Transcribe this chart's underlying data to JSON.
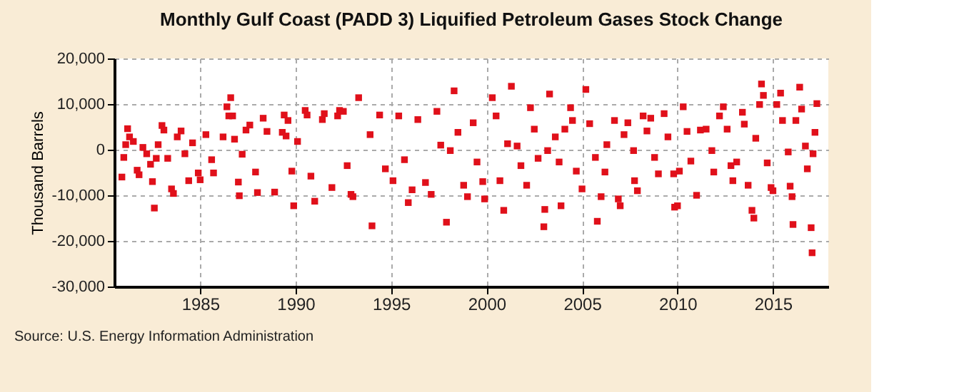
{
  "chart_data": {
    "type": "scatter",
    "title": "Monthly Gulf Coast (PADD 3) Liquified Petroleum Gases Stock Change",
    "ylabel": "Thousand Barrels",
    "annotations": [
      "Source: U.S. Energy Information Administration"
    ],
    "xlim": [
      1980.5,
      2017.9
    ],
    "xticks": [
      1985,
      1990,
      1995,
      2000,
      2005,
      2010,
      2015
    ],
    "ylim": [
      -30000,
      20000
    ],
    "yticks": [
      {
        "value": -30000,
        "label": "-30,000"
      },
      {
        "value": -20000,
        "label": "-20,000"
      },
      {
        "value": -10000,
        "label": "-10,000"
      },
      {
        "value": 0,
        "label": "0"
      },
      {
        "value": 10000,
        "label": "10,000"
      },
      {
        "value": 20000,
        "label": "20,000"
      }
    ],
    "grid": true,
    "marker": "square",
    "series": [
      {
        "color": "#e0101a",
        "x": [
          1980.9,
          1981.0,
          1981.1,
          1981.2,
          1981.3,
          1981.5,
          1981.7,
          1981.8,
          1982.0,
          1982.2,
          1982.4,
          1982.5,
          1982.6,
          1982.7,
          1982.8,
          1983.0,
          1983.1,
          1983.3,
          1983.5,
          1983.6,
          1983.8,
          1984.0,
          1984.2,
          1984.4,
          1984.6,
          1984.9,
          1985.0,
          1985.3,
          1985.6,
          1985.7,
          1986.2,
          1986.4,
          1986.5,
          1986.6,
          1986.7,
          1986.8,
          1987.0,
          1987.05,
          1987.2,
          1987.4,
          1987.6,
          1987.9,
          1988.0,
          1988.3,
          1988.5,
          1988.9,
          1989.3,
          1989.4,
          1989.5,
          1989.6,
          1989.8,
          1989.9,
          1990.1,
          1990.5,
          1990.6,
          1990.8,
          1991.0,
          1991.4,
          1991.5,
          1991.9,
          1992.2,
          1992.3,
          1992.5,
          1992.7,
          1992.9,
          1993.0,
          1993.3,
          1993.9,
          1994.0,
          1994.4,
          1994.7,
          1995.1,
          1995.4,
          1995.7,
          1995.9,
          1996.1,
          1996.4,
          1996.8,
          1997.1,
          1997.4,
          1997.6,
          1997.9,
          1998.1,
          1998.3,
          1998.5,
          1998.8,
          1999.0,
          1999.3,
          1999.5,
          1999.8,
          1999.9,
          2000.3,
          2000.5,
          2000.7,
          2000.9,
          2001.1,
          2001.3,
          2001.6,
          2001.8,
          2002.1,
          2002.3,
          2002.5,
          2002.7,
          2003.0,
          2003.05,
          2003.2,
          2003.3,
          2003.6,
          2003.8,
          2003.9,
          2004.1,
          2004.4,
          2004.5,
          2004.7,
          2005.0,
          2005.2,
          2005.4,
          2005.7,
          2005.8,
          2006.0,
          2006.2,
          2006.3,
          2006.7,
          2006.9,
          2007.0,
          2007.2,
          2007.4,
          2007.7,
          2007.75,
          2007.9,
          2008.2,
          2008.4,
          2008.6,
          2008.8,
          2009.0,
          2009.3,
          2009.5,
          2009.8,
          2009.85,
          2010.0,
          2010.1,
          2010.3,
          2010.5,
          2010.7,
          2011.0,
          2011.2,
          2011.5,
          2011.8,
          2011.9,
          2012.2,
          2012.4,
          2012.6,
          2012.8,
          2012.9,
          2013.1,
          2013.4,
          2013.5,
          2013.7,
          2013.9,
          2014.0,
          2014.1,
          2014.3,
          2014.4,
          2014.5,
          2014.7,
          2014.9,
          2015.0,
          2015.2,
          2015.4,
          2015.5,
          2015.8,
          2015.9,
          2016.0,
          2016.05,
          2016.2,
          2016.4,
          2016.5,
          2016.7,
          2016.8,
          2017.0,
          2017.05,
          2017.1,
          2017.2,
          2017.3
        ],
        "values": [
          -6000,
          -1700,
          1100,
          4600,
          2800,
          1800,
          -4500,
          -5500,
          500,
          -900,
          -3200,
          -7000,
          -12800,
          -1900,
          1100,
          5300,
          4300,
          -1900,
          -8600,
          -9600,
          2800,
          4100,
          -900,
          -6800,
          1500,
          -5100,
          -6600,
          3300,
          -2200,
          -5100,
          2800,
          9400,
          7400,
          11400,
          7400,
          2300,
          -7100,
          -10100,
          -1000,
          4300,
          5400,
          -4900,
          -9400,
          6900,
          4000,
          -9300,
          3800,
          7600,
          3000,
          6400,
          -4700,
          -12300,
          1800,
          8600,
          7600,
          -5800,
          -11300,
          6600,
          7900,
          -8300,
          7400,
          8600,
          8400,
          -3500,
          -9800,
          -10300,
          11400,
          3300,
          -16700,
          7600,
          -4200,
          -6800,
          7400,
          -2200,
          -11600,
          -8800,
          6600,
          -7200,
          -9800,
          8400,
          1000,
          -15900,
          -200,
          12900,
          3800,
          -7800,
          -10300,
          5900,
          -2700,
          -7000,
          -10800,
          11400,
          7400,
          -6800,
          -13300,
          1300,
          13900,
          800,
          -3500,
          -7800,
          9200,
          4500,
          -1900,
          -16900,
          -13100,
          -200,
          12200,
          2800,
          -2700,
          -12300,
          4500,
          9200,
          6400,
          -4700,
          -8600,
          13200,
          5700,
          -1700,
          -15700,
          -10300,
          -4900,
          1100,
          6400,
          -10800,
          -12300,
          3300,
          5900,
          -200,
          -6800,
          -9000,
          7400,
          4100,
          6900,
          -1700,
          -5300,
          7900,
          2800,
          -5300,
          -12600,
          -12300,
          -4700,
          9400,
          4000,
          -2500,
          -10000,
          4300,
          4500,
          -200,
          -4900,
          7400,
          9400,
          4500,
          -3500,
          -6800,
          -2700,
          8200,
          5600,
          -7800,
          -13300,
          -15000,
          2500,
          9900,
          14400,
          11900,
          -2900,
          -8300,
          -9000,
          9900,
          12400,
          6400,
          -500,
          -8000,
          -10300,
          -16400,
          6400,
          13700,
          8900,
          800,
          -4200,
          -17100,
          -22600,
          -900,
          3800,
          10100
        ]
      }
    ]
  }
}
